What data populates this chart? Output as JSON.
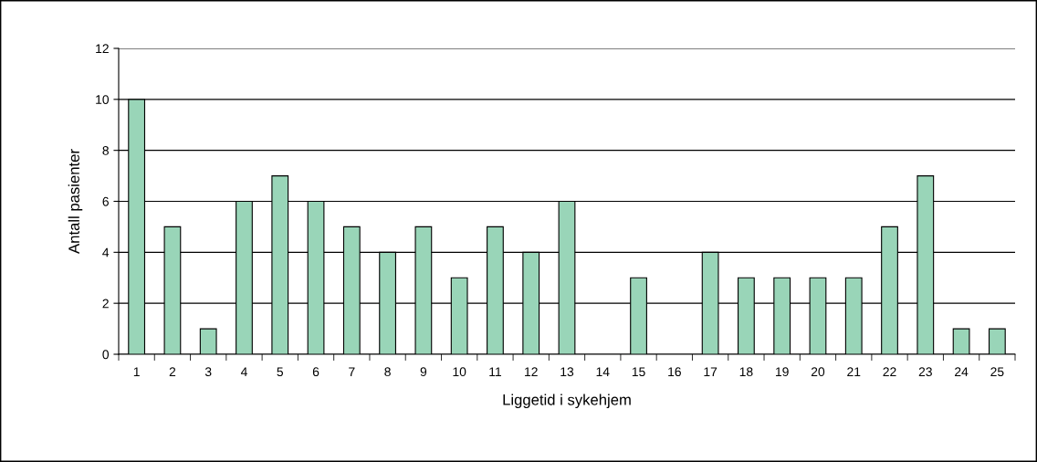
{
  "chart_data": {
    "type": "bar",
    "xlabel": "Liggetid i sykehjem",
    "ylabel": "Antall pasienter",
    "categories": [
      "1",
      "2",
      "3",
      "4",
      "5",
      "6",
      "7",
      "8",
      "9",
      "10",
      "11",
      "12",
      "13",
      "14",
      "15",
      "16",
      "17",
      "18",
      "19",
      "20",
      "21",
      "22",
      "23",
      "24",
      "25"
    ],
    "series": [
      {
        "color": "#99d5b8",
        "values": [
          10,
          5,
          1,
          6,
          7,
          6,
          5,
          4,
          5,
          3,
          5,
          4,
          6,
          0,
          3,
          0,
          4,
          3,
          3,
          3,
          3,
          5,
          7,
          1,
          1
        ]
      }
    ],
    "ylim": [
      0,
      12
    ],
    "yticks": [
      0,
      2,
      4,
      6,
      8,
      10,
      12
    ],
    "grid": "y"
  }
}
